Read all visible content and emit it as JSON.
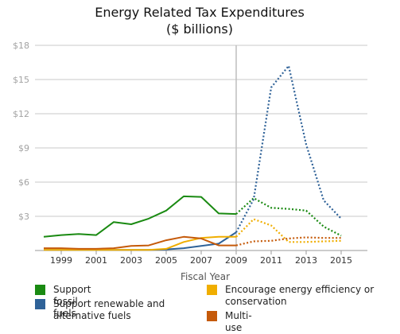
{
  "chart_data": {
    "type": "line",
    "title": "Energy Related Tax Expenditures",
    "subtitle": "($ billions)",
    "xlabel": "Fiscal Year",
    "ylabel": "",
    "xlim": [
      1997.5,
      2016.5
    ],
    "ylim": [
      0,
      18
    ],
    "y_ticks": [
      3,
      6,
      9,
      12,
      15,
      18
    ],
    "y_tick_labels": [
      "$3",
      "$6",
      "$9",
      "$12",
      "$15",
      "$18"
    ],
    "x_ticks": [
      1999,
      2001,
      2003,
      2005,
      2007,
      2009,
      2011,
      2013,
      2015
    ],
    "x_tick_labels": [
      "1999",
      "2001",
      "2003",
      "2005",
      "2007",
      "2009",
      "2011",
      "2013",
      "2015"
    ],
    "divider_year": 2009,
    "divider_note": "solid lines show actual values, dotted lines after 2009 show projections",
    "grid": "horizontal",
    "legend_placement": "bottom",
    "series": [
      {
        "name": "Support fossil fuels",
        "color": "#1a8a12",
        "actual_x": [
          1998,
          1999,
          2000,
          2001,
          2002,
          2003,
          2004,
          2005,
          2006,
          2007,
          2008,
          2009
        ],
        "actual_y": [
          1.2,
          1.35,
          1.45,
          1.35,
          2.5,
          2.3,
          2.8,
          3.5,
          4.75,
          4.7,
          3.25,
          3.2
        ],
        "projected_x": [
          2009,
          2010,
          2011,
          2012,
          2013,
          2014,
          2015
        ],
        "projected_y": [
          3.2,
          4.6,
          3.75,
          3.65,
          3.5,
          2.1,
          1.3
        ]
      },
      {
        "name": "Support renewable and alternative fuels",
        "color": "#2f6298",
        "actual_x": [
          1998,
          1999,
          2000,
          2001,
          2002,
          2003,
          2004,
          2005,
          2006,
          2007,
          2008,
          2009
        ],
        "actual_y": [
          0.05,
          0.05,
          0.05,
          0.05,
          0.05,
          0.05,
          0.05,
          0.1,
          0.2,
          0.4,
          0.6,
          1.6
        ],
        "projected_x": [
          2009,
          2010,
          2011,
          2012,
          2013,
          2014,
          2015
        ],
        "projected_y": [
          1.6,
          4.5,
          14.3,
          16.2,
          9.3,
          4.4,
          2.8
        ]
      },
      {
        "name": "Encourage energy efficiency or conservation",
        "color": "#f0ae00",
        "actual_x": [
          1998,
          1999,
          2000,
          2001,
          2002,
          2003,
          2004,
          2005,
          2006,
          2007,
          2008,
          2009
        ],
        "actual_y": [
          0.05,
          0.05,
          0.05,
          0.05,
          0.05,
          0.05,
          0.05,
          0.15,
          0.75,
          1.1,
          1.2,
          1.2
        ],
        "projected_x": [
          2009,
          2010,
          2011,
          2012,
          2013,
          2014,
          2015
        ],
        "projected_y": [
          1.2,
          2.75,
          2.2,
          0.75,
          0.75,
          0.8,
          0.85
        ]
      },
      {
        "name": "Multi-use",
        "color": "#c55a0a",
        "actual_x": [
          1998,
          1999,
          2000,
          2001,
          2002,
          2003,
          2004,
          2005,
          2006,
          2007,
          2008,
          2009
        ],
        "actual_y": [
          0.2,
          0.2,
          0.15,
          0.15,
          0.2,
          0.4,
          0.45,
          0.9,
          1.2,
          1.05,
          0.45,
          0.45
        ],
        "projected_x": [
          2009,
          2010,
          2011,
          2012,
          2013,
          2014,
          2015
        ],
        "projected_y": [
          0.45,
          0.8,
          0.85,
          1.05,
          1.15,
          1.1,
          1.1
        ]
      }
    ]
  },
  "legend": [
    {
      "label": "Support fossil fuels",
      "color": "#1a8a12"
    },
    {
      "label": "Support renewable and alternative fuels",
      "color": "#2f6298"
    },
    {
      "label": "Encourage energy efficiency or conservation",
      "color": "#f0ae00"
    },
    {
      "label": "Multi-use",
      "color": "#c55a0a"
    }
  ]
}
